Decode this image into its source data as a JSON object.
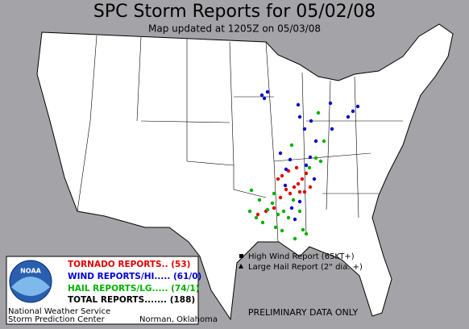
{
  "header": {
    "title": "SPC Storm Reports for 05/02/08",
    "subtitle": "Map updated at 1205Z on 05/03/08"
  },
  "legend": {
    "logo": "NOAA",
    "tornado": "TORNADO REPORTS.. (53)",
    "wind": "WIND REPORTS/HI..... (61/0)",
    "hail": "HAIL REPORTS/LG..... (74/1)",
    "total": "TOTAL REPORTS....... (188)",
    "org1": "National Weather Service",
    "org2": "Storm Prediction Center",
    "location": "Norman, Oklahoma"
  },
  "key": {
    "high_wind": "High Wind Report (65KT+)",
    "large_hail": "Large Hail Report (2\" dia. +)",
    "note": "PRELIMINARY DATA ONLY"
  }
}
